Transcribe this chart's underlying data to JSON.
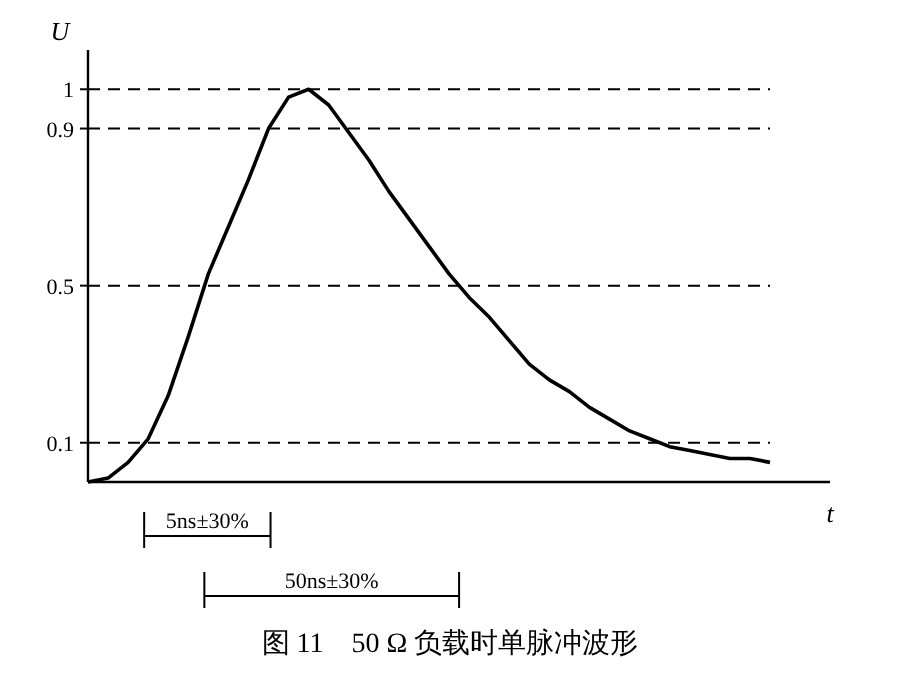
{
  "chart_data": {
    "type": "line",
    "title": "图 11　50 Ω 负载时单脉冲波形",
    "xlabel": "t",
    "ylabel": "U",
    "categories": [
      null,
      null,
      null,
      null,
      null,
      null,
      null,
      null,
      null,
      null,
      null,
      null,
      null,
      null,
      null,
      null,
      null,
      null,
      null,
      null,
      null,
      null,
      null,
      null,
      null,
      null,
      null,
      null,
      null,
      null,
      null,
      null,
      null,
      null,
      null
    ],
    "series": [
      {
        "color": "#000000",
        "values": [
          0,
          0.01,
          0.05,
          0.11,
          0.22,
          0.37,
          0.53,
          0.65,
          0.77,
          0.9,
          0.98,
          1.0,
          0.96,
          0.89,
          0.82,
          0.74,
          0.67,
          0.6,
          0.53,
          0.47,
          0.42,
          0.36,
          0.3,
          0.26,
          0.23,
          0.19,
          0.16,
          0.13,
          0.11,
          0.09,
          0.08,
          0.07,
          0.06,
          0.06,
          0.05
        ]
      }
    ],
    "ylim": [
      0,
      1.1
    ],
    "yticks": [
      0.1,
      0.5,
      0.9,
      1
    ],
    "ref_lines": [
      {
        "axis": "y",
        "value": 1,
        "line_style": "dashed"
      },
      {
        "axis": "y",
        "value": 0.9,
        "line_style": "dashed"
      },
      {
        "axis": "y",
        "value": 0.5,
        "line_style": "dashed"
      },
      {
        "axis": "y",
        "value": 0.1,
        "line_style": "dashed"
      }
    ],
    "annotations": [
      "5ns±30%",
      "50ns±30%"
    ],
    "grid": false,
    "marker": "none",
    "line_style": "solid"
  }
}
